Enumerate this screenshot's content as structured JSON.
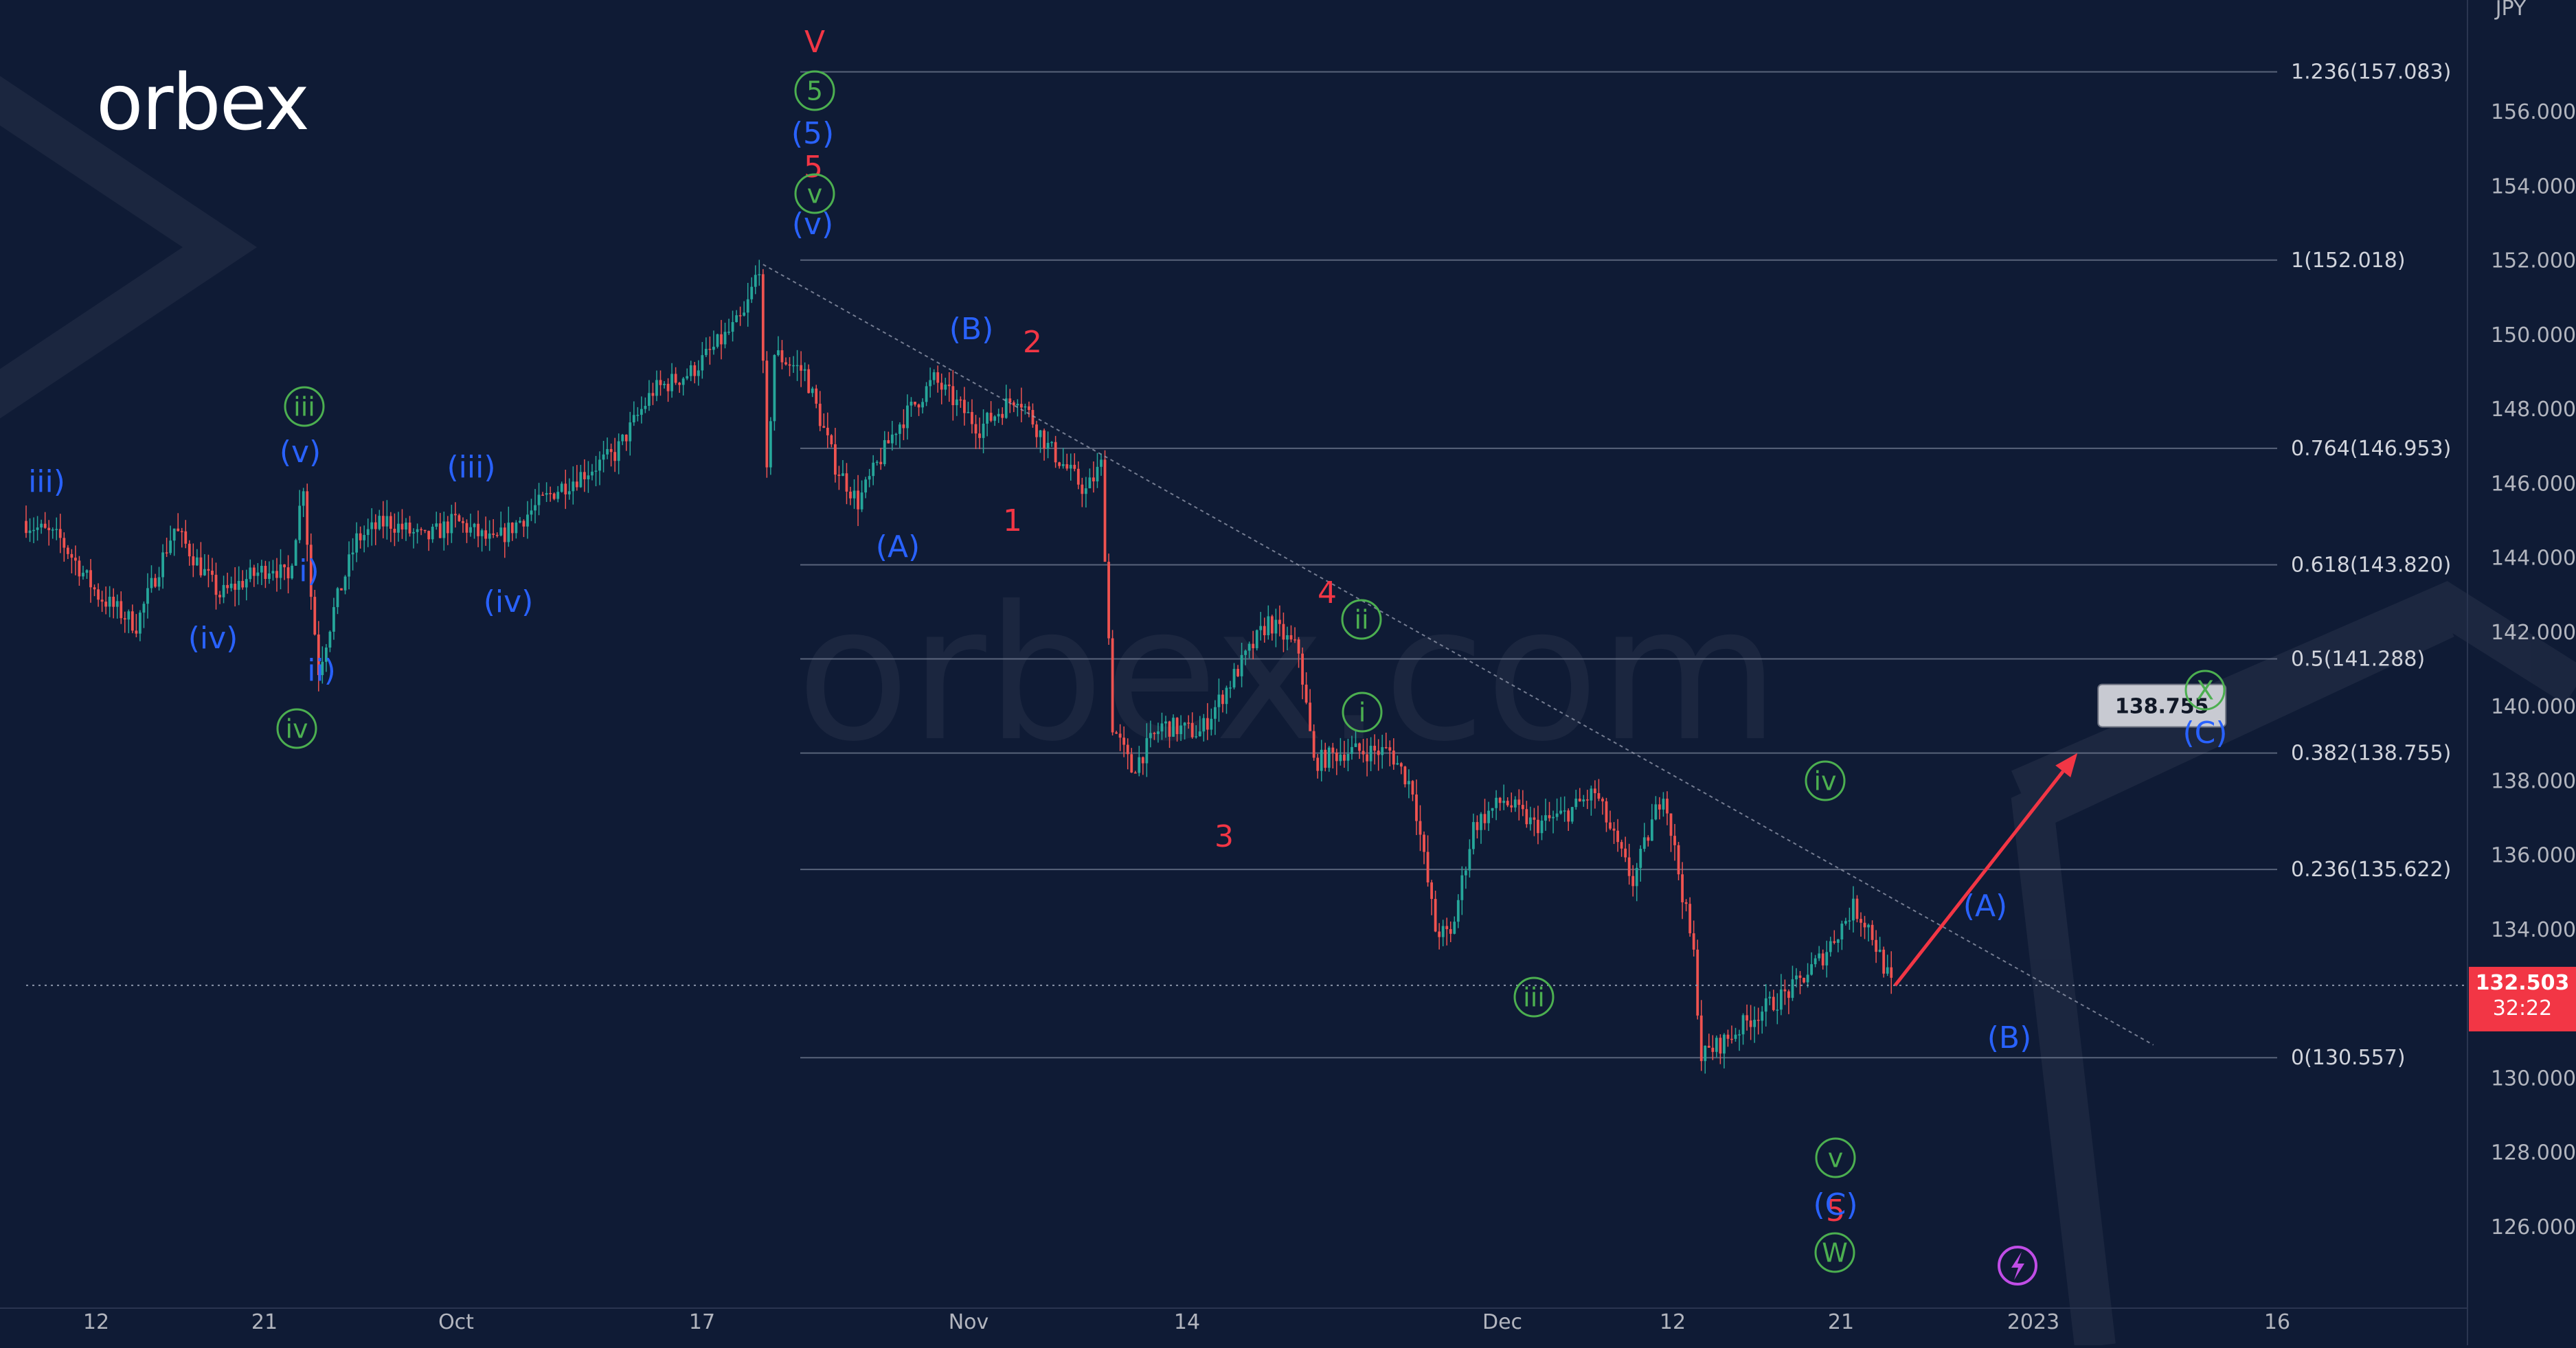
{
  "brand": {
    "logo_text": "orbex",
    "watermark_text": "orbex.com"
  },
  "chart_data": {
    "type": "candlestick",
    "symbol_currency": "JPY",
    "x_tick_labels": [
      "12",
      "21",
      "Oct",
      "17",
      "Nov",
      "14",
      "Dec",
      "12",
      "21",
      "2023",
      "16"
    ],
    "y_tick_labels": [
      "156.000",
      "154.000",
      "152.000",
      "150.000",
      "148.000",
      "146.000",
      "144.000",
      "142.000",
      "140.000",
      "138.000",
      "136.000",
      "134.000",
      "132.000",
      "130.000",
      "128.000",
      "126.000"
    ],
    "ylim": [
      125,
      158
    ],
    "price_path": [
      [
        0,
        145.0
      ],
      [
        10,
        144.5
      ],
      [
        20,
        143.0
      ],
      [
        30,
        142.2
      ],
      [
        40,
        144.8
      ],
      [
        52,
        143.0
      ],
      [
        60,
        143.5
      ],
      [
        66,
        143.8
      ],
      [
        70,
        143.4
      ],
      [
        74,
        146.0
      ],
      [
        76,
        143.0
      ],
      [
        78,
        141.0
      ],
      [
        82,
        142.6
      ],
      [
        88,
        144.5
      ],
      [
        96,
        145.0
      ],
      [
        106,
        144.5
      ],
      [
        114,
        145.0
      ],
      [
        124,
        144.4
      ],
      [
        140,
        145.8
      ],
      [
        156,
        146.8
      ],
      [
        166,
        148.5
      ],
      [
        176,
        149.0
      ],
      [
        190,
        150.5
      ],
      [
        194,
        151.9
      ],
      [
        196,
        146.2
      ],
      [
        198,
        149.5
      ],
      [
        206,
        149.0
      ],
      [
        214,
        146.5
      ],
      [
        220,
        145.5
      ],
      [
        230,
        147.5
      ],
      [
        240,
        148.8
      ],
      [
        252,
        147.5
      ],
      [
        262,
        148.4
      ],
      [
        270,
        147.0
      ],
      [
        280,
        145.8
      ],
      [
        284,
        146.5
      ],
      [
        287,
        139.5
      ],
      [
        292,
        138.3
      ],
      [
        300,
        139.5
      ],
      [
        310,
        139.3
      ],
      [
        320,
        141.0
      ],
      [
        328,
        142.3
      ],
      [
        336,
        141.5
      ],
      [
        340,
        138.5
      ],
      [
        348,
        138.8
      ],
      [
        360,
        138.8
      ],
      [
        366,
        137.8
      ],
      [
        372,
        134.0
      ],
      [
        376,
        133.8
      ],
      [
        382,
        136.8
      ],
      [
        390,
        137.5
      ],
      [
        398,
        136.8
      ],
      [
        406,
        137.1
      ],
      [
        414,
        137.7
      ],
      [
        420,
        136.2
      ],
      [
        424,
        135.3
      ],
      [
        432,
        137.8
      ],
      [
        440,
        133.3
      ],
      [
        442,
        130.6
      ],
      [
        448,
        131.0
      ],
      [
        456,
        131.7
      ],
      [
        466,
        132.4
      ],
      [
        474,
        133.3
      ],
      [
        482,
        134.6
      ],
      [
        486,
        134.1
      ],
      [
        492,
        132.5
      ]
    ],
    "projection": {
      "from": [
        492,
        132.503
      ],
      "to": [
        540,
        138.755
      ],
      "label": "138.755"
    },
    "current_price": {
      "value": "132.503",
      "countdown": "32:22"
    },
    "trendline": {
      "from": [
        194,
        151.9
      ],
      "to": [
        560,
        130.9
      ]
    },
    "fib_levels": [
      {
        "label": "1.236(157.083)",
        "price": 157.083
      },
      {
        "label": "1(152.018)",
        "price": 152.018
      },
      {
        "label": "0.764(146.953)",
        "price": 146.953
      },
      {
        "label": "0.618(143.820)",
        "price": 143.82
      },
      {
        "label": "0.5(141.288)",
        "price": 141.288
      },
      {
        "label": "0.382(138.755)",
        "price": 138.755
      },
      {
        "label": "0.236(135.622)",
        "price": 135.622
      },
      {
        "label": "0(130.557)",
        "price": 130.557
      }
    ],
    "wave_labels": [
      {
        "text": "V",
        "color": "#f23645",
        "circled": false
      },
      {
        "text": "5",
        "color": "#4caf50",
        "circled": true
      },
      {
        "text": "(5)",
        "color": "#2962ff",
        "circled": false
      },
      {
        "text": "5",
        "color": "#f23645",
        "circled": false
      },
      {
        "text": "v",
        "color": "#4caf50",
        "circled": true
      },
      {
        "text": "(v)",
        "color": "#2962ff",
        "circled": false
      },
      {
        "text": "iii)",
        "color": "#2962ff",
        "circled": false
      },
      {
        "text": "iii",
        "color": "#4caf50",
        "circled": true
      },
      {
        "text": "(v)",
        "color": "#2962ff",
        "circled": false
      },
      {
        "text": "(iii)",
        "color": "#2962ff",
        "circled": false
      },
      {
        "text": "(iv)",
        "color": "#2962ff",
        "circled": false
      },
      {
        "text": "i)",
        "color": "#2962ff",
        "circled": false
      },
      {
        "text": "ii)",
        "color": "#2962ff",
        "circled": false
      },
      {
        "text": "iv",
        "color": "#4caf50",
        "circled": true
      },
      {
        "text": "(iv)",
        "color": "#2962ff",
        "circled": false
      },
      {
        "text": "(B)",
        "color": "#2962ff",
        "circled": false
      },
      {
        "text": "2",
        "color": "#f23645",
        "circled": false
      },
      {
        "text": "(A)",
        "color": "#2962ff",
        "circled": false
      },
      {
        "text": "1",
        "color": "#f23645",
        "circled": false
      },
      {
        "text": "4",
        "color": "#f23645",
        "circled": false
      },
      {
        "text": "ii",
        "color": "#4caf50",
        "circled": true
      },
      {
        "text": "i",
        "color": "#4caf50",
        "circled": true
      },
      {
        "text": "3",
        "color": "#f23645",
        "circled": false
      },
      {
        "text": "iii",
        "color": "#4caf50",
        "circled": true
      },
      {
        "text": "iv",
        "color": "#4caf50",
        "circled": true
      },
      {
        "text": "v",
        "color": "#4caf50",
        "circled": true
      },
      {
        "text": "5",
        "color": "#f23645",
        "circled": false
      },
      {
        "text": "(C)",
        "color": "#2962ff",
        "circled": false
      },
      {
        "text": "W",
        "color": "#4caf50",
        "circled": true
      },
      {
        "text": "(A)",
        "color": "#2962ff",
        "circled": false
      },
      {
        "text": "(B)",
        "color": "#2962ff",
        "circled": false
      },
      {
        "text": "X",
        "color": "#4caf50",
        "circled": true
      },
      {
        "text": "(C)",
        "color": "#2962ff",
        "circled": false
      }
    ],
    "colors": {
      "background": "#0f1b35",
      "up": "#26a69a",
      "down": "#ef5350",
      "red_label": "#f23645",
      "blue_label": "#2962ff",
      "green_label": "#4caf50",
      "projection_arrow": "#f23645",
      "price_badge": "#f23645"
    },
    "grid": false
  }
}
